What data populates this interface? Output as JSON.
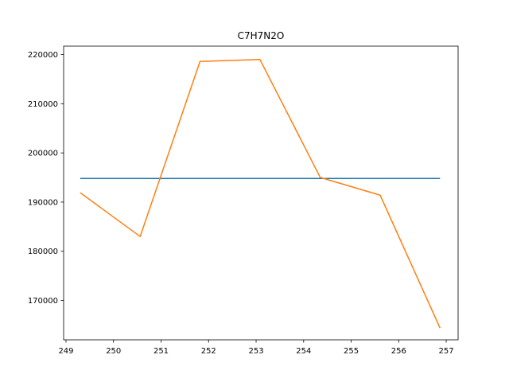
{
  "chart_data": {
    "type": "line",
    "title": "C7H7N2O",
    "xlabel": "",
    "ylabel": "",
    "xlim": [
      248.95,
      257.25
    ],
    "ylim": [
      162000,
      221700
    ],
    "x_ticks": [
      249,
      250,
      251,
      252,
      253,
      254,
      255,
      256,
      257
    ],
    "y_ticks": [
      170000,
      180000,
      190000,
      200000,
      210000,
      220000
    ],
    "grid": false,
    "series": [
      {
        "color": "#1f77b4",
        "x": [
          249.3,
          256.87
        ],
        "y": [
          194800,
          194800
        ]
      },
      {
        "color": "#ff7f0e",
        "x": [
          249.3,
          250.56,
          251.82,
          253.08,
          254.35,
          255.61,
          256.87
        ],
        "y": [
          191900,
          183000,
          218600,
          219000,
          195000,
          191400,
          164400
        ]
      }
    ]
  }
}
